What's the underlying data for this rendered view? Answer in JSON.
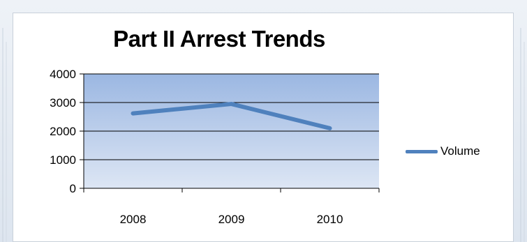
{
  "chart_data": {
    "type": "line",
    "title": "Part II  Arrest Trends",
    "categories": [
      "2008",
      "2009",
      "2010"
    ],
    "series": [
      {
        "name": "Volume",
        "values": [
          2620,
          2950,
          2100
        ],
        "color": "#4f81bd"
      }
    ],
    "ylim": [
      0,
      4000
    ],
    "yticks": [
      0,
      1000,
      2000,
      3000,
      4000
    ],
    "xlabel": "",
    "ylabel": "",
    "grid": true,
    "legend_position": "right",
    "plot_fill_top": "#9bb7e2",
    "plot_fill_bottom": "#dde6f4"
  }
}
